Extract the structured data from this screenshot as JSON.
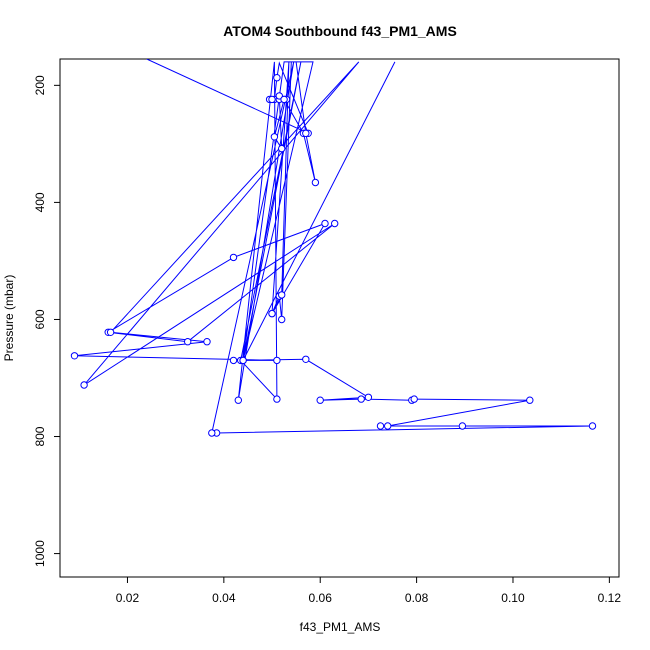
{
  "chart_data": {
    "type": "line",
    "title": "ATOM4 Southbound f43_PM1_AMS",
    "xlabel": "f43_PM1_AMS",
    "ylabel": "Pressure (mbar)",
    "xlim": [
      0.006,
      0.122
    ],
    "ylim": [
      1040,
      155
    ],
    "y_reversed": true,
    "grid": false,
    "legend": "none",
    "series_color": "#0000ff",
    "x_ticks": [
      "0.02",
      "0.04",
      "0.06",
      "0.08",
      "0.10",
      "0.12"
    ],
    "x_tick_values": [
      0.02,
      0.04,
      0.06,
      0.08,
      0.1,
      0.12
    ],
    "y_ticks": [
      "200",
      "400",
      "600",
      "800",
      "1000"
    ],
    "y_tick_values": [
      200,
      400,
      600,
      800,
      1000
    ],
    "series": [
      {
        "x": [
          0.024,
          0.0575,
          0.0515,
          0.051,
          0.0505,
          0.0495,
          0.05,
          0.0515,
          0.0525,
          0.053,
          0.0515,
          0.052,
          0.0505,
          0.0525,
          0.0565,
          0.059,
          0.057,
          0.055,
          0.054,
          0.052,
          0.0515,
          0.05,
          0.0535,
          0.052,
          0.05,
          0.061,
          0.042,
          0.016,
          0.0325,
          0.063,
          0.011,
          0.068,
          0.0165,
          0.0365,
          0.009,
          0.051,
          0.042,
          0.057,
          0.07,
          0.06,
          0.0685,
          0.079,
          0.0795,
          0.1035,
          0.074,
          0.0725,
          0.0895,
          0.1165,
          0.0385,
          0.0375,
          0.0545,
          0.043,
          0.0505,
          0.051,
          0.0435,
          0.056,
          0.044,
          0.0585,
          0.057,
          0.0525,
          0.044,
          0.0755
        ]
      }
    ]
  }
}
